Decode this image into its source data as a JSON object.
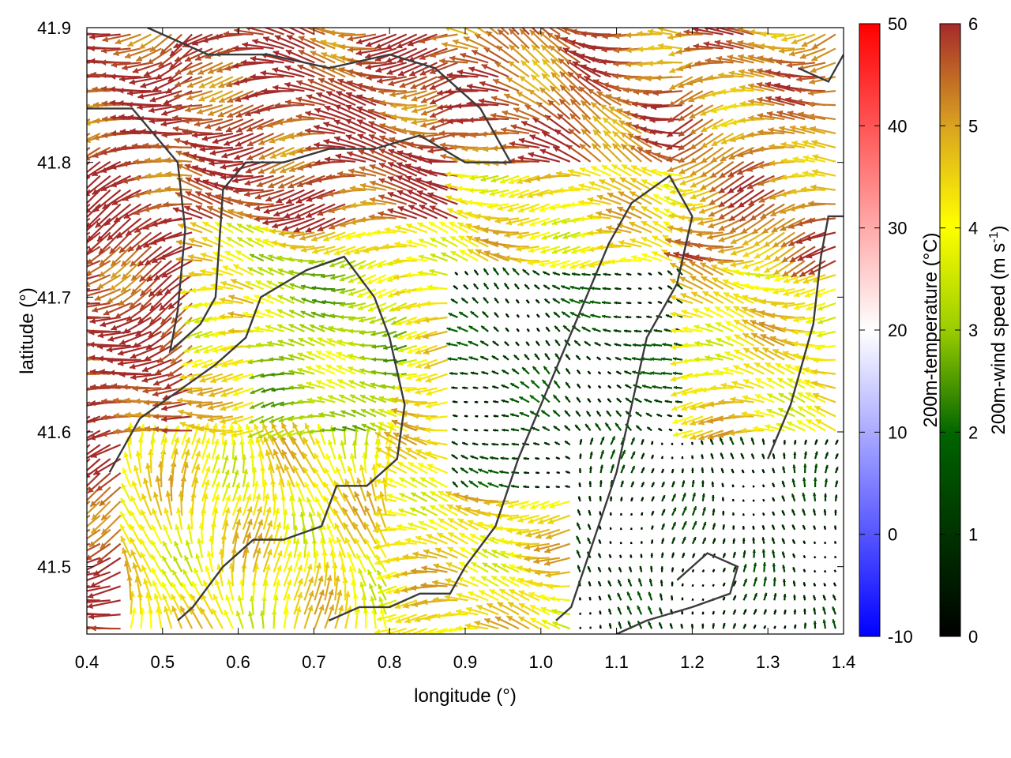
{
  "chart_data": {
    "type": "vector-field",
    "xlabel": "longitude (°)",
    "ylabel": "latitude (°)",
    "xlim": [
      0.4,
      1.4
    ],
    "ylim": [
      41.45,
      41.9
    ],
    "x_ticks": [
      "0.4",
      "0.5",
      "0.6",
      "0.7",
      "0.8",
      "0.9",
      "1.0",
      "1.1",
      "1.2",
      "1.3",
      "1.4"
    ],
    "y_ticks": [
      "41.5",
      "41.6",
      "41.7",
      "41.8",
      "41.9"
    ],
    "grid": false,
    "temperature_colorbar": {
      "label": "200m-temperature (°C)",
      "range": [
        -10,
        50
      ],
      "ticks": [
        "-10",
        "0",
        "10",
        "20",
        "30",
        "40",
        "50"
      ],
      "colors": [
        "#0000ff",
        "#ffffff",
        "#ff0000"
      ]
    },
    "wind_colorbar": {
      "label_main": "200m-wind speed (m s",
      "label_sup": "-1",
      "label_end": ")",
      "range": [
        0,
        6
      ],
      "ticks": [
        "0",
        "1",
        "2",
        "3",
        "4",
        "5",
        "6"
      ],
      "colors": [
        "#000000",
        "#006400",
        "#9acd00",
        "#ffff00",
        "#daa520",
        "#a52a2a"
      ]
    },
    "wind_regions": [
      {
        "lon": [
          0.4,
          0.55
        ],
        "lat": [
          41.45,
          41.9
        ],
        "speed": 5.9,
        "direction_deg": 200
      },
      {
        "lon": [
          0.55,
          0.9
        ],
        "lat": [
          41.75,
          41.9
        ],
        "speed": 5.8,
        "direction_deg": 180
      },
      {
        "lon": [
          0.9,
          1.2
        ],
        "lat": [
          41.8,
          41.9
        ],
        "speed": 5.5,
        "direction_deg": 160
      },
      {
        "lon": [
          1.2,
          1.4
        ],
        "lat": [
          41.72,
          41.9
        ],
        "speed": 5.2,
        "direction_deg": 190
      },
      {
        "lon": [
          0.62,
          0.83
        ],
        "lat": [
          41.6,
          41.73
        ],
        "speed": 3.2,
        "direction_deg": 180
      },
      {
        "lon": [
          0.88,
          1.2
        ],
        "lat": [
          41.55,
          41.72
        ],
        "speed": 1.2,
        "direction_deg": 150
      },
      {
        "lon": [
          1.05,
          1.4
        ],
        "lat": [
          41.45,
          41.6
        ],
        "speed": 0.8,
        "direction_deg": 90
      },
      {
        "lon": [
          0.45,
          0.8
        ],
        "lat": [
          41.45,
          41.6
        ],
        "speed": 4.2,
        "direction_deg": 95
      }
    ],
    "contours": [
      [
        [
          0.4,
          41.84
        ],
        [
          0.46,
          41.84
        ],
        [
          0.52,
          41.8
        ],
        [
          0.53,
          41.75
        ],
        [
          0.52,
          41.69
        ],
        [
          0.51,
          41.66
        ],
        [
          0.55,
          41.68
        ],
        [
          0.57,
          41.7
        ],
        [
          0.58,
          41.78
        ],
        [
          0.61,
          41.8
        ],
        [
          0.66,
          41.8
        ],
        [
          0.72,
          41.81
        ],
        [
          0.78,
          41.81
        ],
        [
          0.84,
          41.82
        ],
        [
          0.9,
          41.8
        ],
        [
          0.96,
          41.8
        ],
        [
          0.92,
          41.84
        ],
        [
          0.86,
          41.87
        ],
        [
          0.8,
          41.88
        ],
        [
          0.72,
          41.87
        ],
        [
          0.64,
          41.88
        ],
        [
          0.56,
          41.88
        ],
        [
          0.48,
          41.9
        ]
      ],
      [
        [
          0.43,
          41.57
        ],
        [
          0.47,
          41.61
        ],
        [
          0.52,
          41.63
        ],
        [
          0.57,
          41.65
        ],
        [
          0.61,
          41.67
        ],
        [
          0.63,
          41.7
        ],
        [
          0.69,
          41.72
        ],
        [
          0.74,
          41.73
        ],
        [
          0.78,
          41.7
        ],
        [
          0.8,
          41.67
        ],
        [
          0.82,
          41.62
        ],
        [
          0.81,
          41.58
        ],
        [
          0.77,
          41.56
        ],
        [
          0.73,
          41.56
        ],
        [
          0.71,
          41.53
        ],
        [
          0.66,
          41.52
        ],
        [
          0.62,
          41.52
        ],
        [
          0.58,
          41.5
        ],
        [
          0.54,
          41.47
        ],
        [
          0.52,
          41.46
        ]
      ],
      [
        [
          0.72,
          41.46
        ],
        [
          0.76,
          41.47
        ],
        [
          0.8,
          41.47
        ],
        [
          0.84,
          41.48
        ],
        [
          0.88,
          41.48
        ],
        [
          0.9,
          41.5
        ],
        [
          0.94,
          41.53
        ],
        [
          0.97,
          41.58
        ],
        [
          1.0,
          41.62
        ],
        [
          1.03,
          41.66
        ],
        [
          1.06,
          41.7
        ],
        [
          1.09,
          41.74
        ],
        [
          1.12,
          41.77
        ],
        [
          1.17,
          41.79
        ],
        [
          1.2,
          41.76
        ],
        [
          1.18,
          41.71
        ],
        [
          1.14,
          41.67
        ],
        [
          1.12,
          41.62
        ],
        [
          1.1,
          41.57
        ],
        [
          1.07,
          41.52
        ],
        [
          1.04,
          41.47
        ],
        [
          1.02,
          41.46
        ]
      ],
      [
        [
          1.1,
          41.45
        ],
        [
          1.14,
          41.46
        ],
        [
          1.2,
          41.47
        ],
        [
          1.25,
          41.48
        ],
        [
          1.26,
          41.5
        ],
        [
          1.22,
          41.51
        ],
        [
          1.18,
          41.49
        ]
      ],
      [
        [
          1.3,
          41.58
        ],
        [
          1.33,
          41.62
        ],
        [
          1.36,
          41.68
        ],
        [
          1.37,
          41.73
        ],
        [
          1.38,
          41.76
        ],
        [
          1.4,
          41.76
        ]
      ],
      [
        [
          1.34,
          41.87
        ],
        [
          1.38,
          41.86
        ],
        [
          1.4,
          41.88
        ]
      ]
    ]
  }
}
